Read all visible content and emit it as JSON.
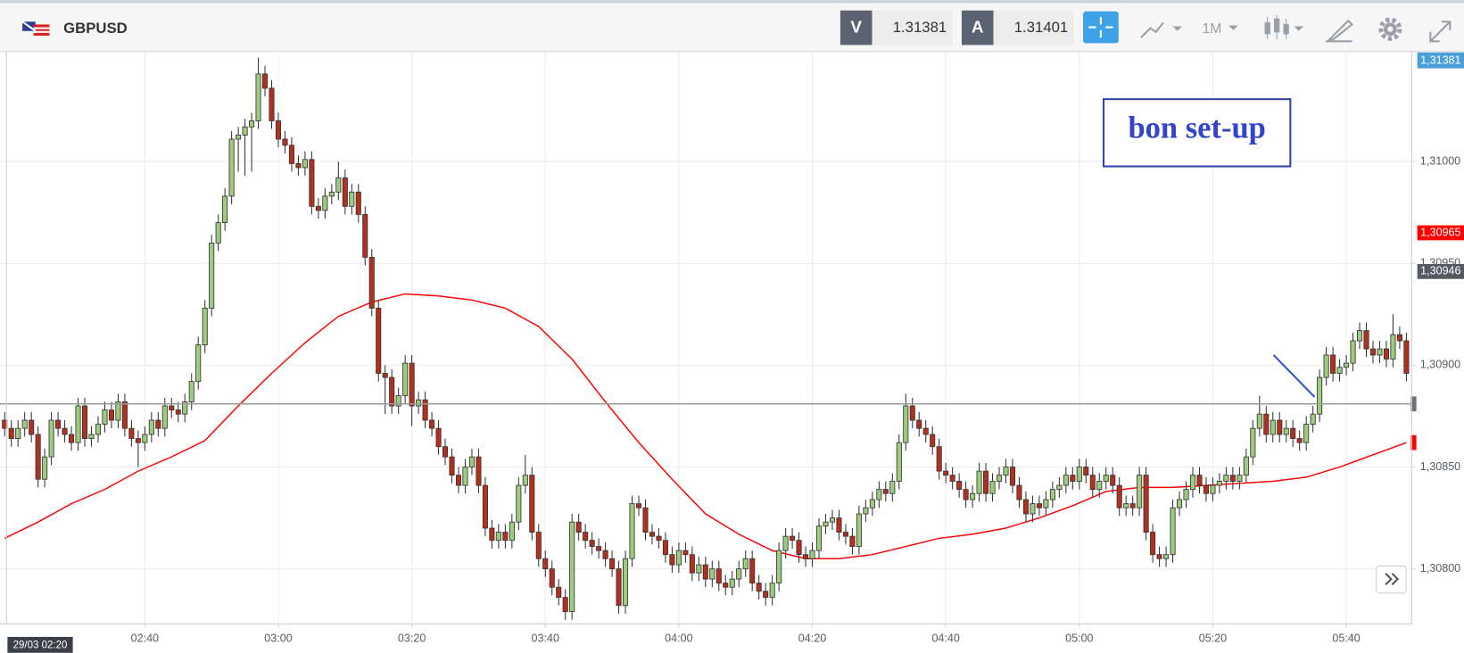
{
  "header": {
    "symbol": "GBPUSD",
    "bid_tag": "V",
    "bid": "1.31381",
    "ask_tag": "A",
    "ask": "1.31401",
    "timeframe": "1M"
  },
  "chart_data": {
    "type": "candlestick",
    "x": [
      139,
      140,
      141,
      142,
      143,
      144,
      145,
      146,
      147,
      148,
      149,
      150,
      151,
      152,
      153,
      154,
      155,
      156,
      157,
      158,
      159,
      160,
      161,
      162,
      163,
      164,
      165,
      166,
      167,
      168,
      169,
      170,
      171,
      172,
      173,
      174,
      175,
      176,
      177,
      178,
      179,
      180,
      181,
      182,
      183,
      184,
      185,
      186,
      187,
      188,
      189,
      190,
      191,
      192,
      193,
      194,
      195,
      196,
      197,
      198,
      199,
      200,
      201,
      202,
      203,
      204,
      205,
      206,
      207,
      208,
      209,
      210,
      211,
      212,
      213,
      214,
      215,
      216,
      217,
      218,
      219,
      220,
      221,
      222,
      223,
      224,
      225,
      226,
      227,
      228,
      229,
      230,
      231,
      232,
      233,
      234,
      235,
      236,
      237,
      238,
      239,
      240,
      241,
      242,
      243,
      244,
      245,
      246,
      247,
      248,
      249,
      250,
      251,
      252,
      253,
      254,
      255,
      256,
      257,
      258,
      259,
      260,
      261,
      262,
      263,
      264,
      265,
      266,
      267,
      268,
      269,
      270,
      271,
      272,
      273,
      274,
      275,
      276,
      277,
      278,
      279,
      280,
      281,
      282,
      283,
      284,
      285,
      286,
      287,
      288,
      289,
      290,
      291,
      292,
      293,
      294,
      295,
      296,
      297,
      298,
      299,
      300,
      301,
      302,
      303,
      304,
      305,
      306,
      307,
      308,
      309,
      310,
      311,
      312,
      313,
      314,
      315,
      316,
      317,
      318,
      319,
      320,
      321,
      322,
      323,
      324,
      325,
      326,
      327,
      328,
      329,
      330,
      331,
      332,
      333,
      334,
      335,
      336,
      337,
      338,
      339,
      340,
      341,
      342,
      343,
      344,
      345,
      346,
      347,
      348,
      349
    ],
    "open": [
      1.30873,
      1.30869,
      1.30864,
      1.30869,
      1.30873,
      1.30866,
      1.30844,
      1.30855,
      1.30873,
      1.30869,
      1.30866,
      1.30862,
      1.3088,
      1.30864,
      1.30866,
      1.30871,
      1.30878,
      1.30873,
      1.30882,
      1.30869,
      1.30864,
      1.30862,
      1.30866,
      1.30873,
      1.30869,
      1.3088,
      1.30878,
      1.30876,
      1.30882,
      1.30892,
      1.3091,
      1.30928,
      1.3096,
      1.3097,
      1.30983,
      1.31011,
      1.31013,
      1.31017,
      1.3102,
      1.31043,
      1.31036,
      1.3102,
      1.31011,
      1.31008,
      1.30999,
      1.30997,
      1.31001,
      1.30978,
      1.30976,
      1.30983,
      1.30985,
      1.30992,
      1.30978,
      1.30985,
      1.30974,
      1.30953,
      1.30928,
      1.30896,
      1.30894,
      1.3088,
      1.30885,
      1.30901,
      1.3088,
      1.30883,
      1.30873,
      1.30869,
      1.3086,
      1.30855,
      1.30846,
      1.30841,
      1.3085,
      1.30855,
      1.30841,
      1.3082,
      1.30814,
      1.30818,
      1.30814,
      1.30823,
      1.30841,
      1.30846,
      1.30818,
      1.30805,
      1.308,
      1.30791,
      1.30786,
      1.30779,
      1.30823,
      1.30818,
      1.30814,
      1.30811,
      1.30809,
      1.30805,
      1.308,
      1.30782,
      1.30805,
      1.30832,
      1.3083,
      1.30818,
      1.30816,
      1.30814,
      1.30807,
      1.30802,
      1.30809,
      1.30807,
      1.30798,
      1.30802,
      1.30795,
      1.308,
      1.30793,
      1.30791,
      1.30795,
      1.308,
      1.30805,
      1.30793,
      1.30789,
      1.30786,
      1.30793,
      1.30809,
      1.30816,
      1.30814,
      1.30807,
      1.30805,
      1.30809,
      1.30821,
      1.30823,
      1.30825,
      1.30818,
      1.30816,
      1.30811,
      1.30827,
      1.3083,
      1.30834,
      1.30839,
      1.30837,
      1.30843,
      1.30862,
      1.3088,
      1.30873,
      1.30869,
      1.30866,
      1.3086,
      1.30848,
      1.30846,
      1.30843,
      1.30839,
      1.30834,
      1.30837,
      1.30848,
      1.30837,
      1.30843,
      1.30846,
      1.3085,
      1.30841,
      1.30834,
      1.30827,
      1.30832,
      1.3083,
      1.30834,
      1.30839,
      1.30841,
      1.30846,
      1.30843,
      1.3085,
      1.30846,
      1.30839,
      1.30843,
      1.30846,
      1.30841,
      1.3083,
      1.30832,
      1.3083,
      1.30846,
      1.30818,
      1.30807,
      1.30805,
      1.30807,
      1.3083,
      1.30834,
      1.30839,
      1.30846,
      1.30841,
      1.30837,
      1.30841,
      1.30843,
      1.30846,
      1.30843,
      1.30846,
      1.30855,
      1.30869,
      1.30876,
      1.30866,
      1.30873,
      1.30866,
      1.30869,
      1.30864,
      1.30862,
      1.30871,
      1.30876,
      1.30894,
      1.30905,
      1.30896,
      1.30899,
      1.30901,
      1.30912,
      1.30917,
      1.30908,
      1.30905,
      1.30908,
      1.30903,
      1.30915,
      1.30912
    ],
    "high": [
      1.30877,
      1.30873,
      1.30873,
      1.30877,
      1.30877,
      1.3087,
      1.30859,
      1.30877,
      1.30877,
      1.30873,
      1.3087,
      1.30884,
      1.30884,
      1.3087,
      1.30875,
      1.30882,
      1.30882,
      1.30886,
      1.30886,
      1.30873,
      1.30868,
      1.3087,
      1.30877,
      1.30877,
      1.30884,
      1.30884,
      1.30882,
      1.30886,
      1.30896,
      1.30914,
      1.30932,
      1.30964,
      1.30974,
      1.30987,
      1.31015,
      1.31017,
      1.31021,
      1.31024,
      1.31051,
      1.31047,
      1.3104,
      1.31024,
      1.31015,
      1.31012,
      1.31003,
      1.31005,
      1.31005,
      1.30982,
      1.30987,
      1.30989,
      1.31,
      1.30996,
      1.30989,
      1.30989,
      1.30978,
      1.30957,
      1.30932,
      1.309,
      1.30898,
      1.30889,
      1.30905,
      1.30905,
      1.30887,
      1.30887,
      1.30877,
      1.30873,
      1.30864,
      1.30859,
      1.3085,
      1.30854,
      1.30859,
      1.30859,
      1.30845,
      1.30824,
      1.30822,
      1.30822,
      1.30827,
      1.30845,
      1.30856,
      1.3085,
      1.30822,
      1.30809,
      1.30804,
      1.30795,
      1.3079,
      1.30827,
      1.30827,
      1.30822,
      1.30818,
      1.30815,
      1.30813,
      1.30809,
      1.30804,
      1.30809,
      1.30836,
      1.30836,
      1.30834,
      1.30822,
      1.3082,
      1.30818,
      1.30811,
      1.30813,
      1.30813,
      1.30811,
      1.30806,
      1.30806,
      1.30804,
      1.30804,
      1.30797,
      1.30799,
      1.30804,
      1.30809,
      1.30809,
      1.30797,
      1.30793,
      1.30797,
      1.30813,
      1.3082,
      1.3082,
      1.30818,
      1.30811,
      1.30813,
      1.30825,
      1.30827,
      1.30829,
      1.30829,
      1.30822,
      1.3082,
      1.30831,
      1.30834,
      1.30838,
      1.30843,
      1.30843,
      1.30847,
      1.30866,
      1.30886,
      1.30884,
      1.30877,
      1.30873,
      1.3087,
      1.30864,
      1.30852,
      1.3085,
      1.30847,
      1.30843,
      1.30841,
      1.30852,
      1.30852,
      1.30847,
      1.3085,
      1.30854,
      1.30854,
      1.30845,
      1.30838,
      1.30836,
      1.30836,
      1.30838,
      1.30843,
      1.30845,
      1.3085,
      1.3085,
      1.30854,
      1.30854,
      1.3085,
      1.30847,
      1.3085,
      1.3085,
      1.30845,
      1.30836,
      1.30836,
      1.3085,
      1.3085,
      1.30822,
      1.30811,
      1.30811,
      1.30834,
      1.30838,
      1.30843,
      1.3085,
      1.3085,
      1.30845,
      1.30845,
      1.30847,
      1.3085,
      1.3085,
      1.3085,
      1.30859,
      1.30873,
      1.30885,
      1.3088,
      1.30877,
      1.30877,
      1.30873,
      1.30873,
      1.30868,
      1.30875,
      1.3088,
      1.30898,
      1.30909,
      1.30909,
      1.30903,
      1.30905,
      1.30916,
      1.30921,
      1.30921,
      1.30912,
      1.30912,
      1.30912,
      1.30925,
      1.30919,
      1.30916
    ],
    "low": [
      1.30865,
      1.3086,
      1.3086,
      1.30865,
      1.30862,
      1.3084,
      1.3084,
      1.30851,
      1.30865,
      1.30862,
      1.30858,
      1.30858,
      1.3086,
      1.3086,
      1.30862,
      1.30867,
      1.30869,
      1.30869,
      1.30865,
      1.3086,
      1.3085,
      1.30858,
      1.30862,
      1.30865,
      1.30865,
      1.30874,
      1.30872,
      1.30872,
      1.30878,
      1.30888,
      1.30906,
      1.30924,
      1.30956,
      1.30966,
      1.30979,
      1.30995,
      1.30993,
      1.30995,
      1.31016,
      1.31032,
      1.31016,
      1.31007,
      1.31004,
      1.30995,
      1.30993,
      1.30993,
      1.30974,
      1.30972,
      1.30972,
      1.30979,
      1.30981,
      1.30974,
      1.30974,
      1.3097,
      1.30949,
      1.30924,
      1.30892,
      1.30876,
      1.30876,
      1.30876,
      1.30881,
      1.3087,
      1.30876,
      1.30869,
      1.30865,
      1.30856,
      1.30851,
      1.30842,
      1.30837,
      1.30837,
      1.30846,
      1.30837,
      1.30816,
      1.3081,
      1.3081,
      1.3081,
      1.3081,
      1.30819,
      1.30837,
      1.30814,
      1.30801,
      1.30796,
      1.30787,
      1.30782,
      1.30775,
      1.30775,
      1.30814,
      1.3081,
      1.30807,
      1.30805,
      1.30801,
      1.30796,
      1.30778,
      1.30778,
      1.30801,
      1.30826,
      1.30814,
      1.30812,
      1.3081,
      1.30803,
      1.30798,
      1.30798,
      1.30803,
      1.30794,
      1.30794,
      1.30791,
      1.30791,
      1.30789,
      1.30787,
      1.30787,
      1.30791,
      1.30796,
      1.30789,
      1.30785,
      1.30782,
      1.30782,
      1.30789,
      1.30805,
      1.3081,
      1.30803,
      1.30801,
      1.30801,
      1.30805,
      1.30817,
      1.30819,
      1.30814,
      1.30812,
      1.30807,
      1.30807,
      1.30823,
      1.30826,
      1.3083,
      1.30833,
      1.30833,
      1.30839,
      1.30858,
      1.30869,
      1.30865,
      1.30862,
      1.30856,
      1.30844,
      1.30842,
      1.30839,
      1.30835,
      1.3083,
      1.3083,
      1.30833,
      1.30833,
      1.30833,
      1.30839,
      1.30842,
      1.30837,
      1.3083,
      1.30823,
      1.30823,
      1.30826,
      1.30826,
      1.3083,
      1.30835,
      1.30837,
      1.30839,
      1.30839,
      1.30842,
      1.30835,
      1.30835,
      1.30839,
      1.30837,
      1.30826,
      1.30826,
      1.30826,
      1.30826,
      1.30814,
      1.30803,
      1.30801,
      1.30801,
      1.30803,
      1.30826,
      1.3083,
      1.30835,
      1.30837,
      1.30833,
      1.30833,
      1.30837,
      1.30839,
      1.30839,
      1.30839,
      1.30842,
      1.30851,
      1.30865,
      1.30862,
      1.30862,
      1.30862,
      1.30862,
      1.3086,
      1.30858,
      1.30858,
      1.30867,
      1.30872,
      1.3089,
      1.30892,
      1.30892,
      1.30895,
      1.30897,
      1.30908,
      1.30904,
      1.30901,
      1.30901,
      1.30899,
      1.30899,
      1.30908,
      1.30892
    ],
    "close": [
      1.30869,
      1.30864,
      1.30869,
      1.30873,
      1.30866,
      1.30844,
      1.30855,
      1.30873,
      1.30869,
      1.30866,
      1.30862,
      1.3088,
      1.30864,
      1.30866,
      1.30871,
      1.30878,
      1.30873,
      1.30882,
      1.30869,
      1.30864,
      1.30862,
      1.30866,
      1.30873,
      1.30869,
      1.3088,
      1.30878,
      1.30876,
      1.30882,
      1.30892,
      1.3091,
      1.30928,
      1.3096,
      1.3097,
      1.30983,
      1.31011,
      1.31013,
      1.31017,
      1.3102,
      1.31043,
      1.31036,
      1.3102,
      1.31011,
      1.31008,
      1.30999,
      1.30997,
      1.31001,
      1.30978,
      1.30976,
      1.30983,
      1.30985,
      1.30992,
      1.30978,
      1.30985,
      1.30974,
      1.30953,
      1.30928,
      1.30896,
      1.30894,
      1.3088,
      1.30885,
      1.30901,
      1.3088,
      1.30883,
      1.30873,
      1.30869,
      1.3086,
      1.30855,
      1.30846,
      1.30841,
      1.3085,
      1.30855,
      1.30841,
      1.3082,
      1.30814,
      1.30818,
      1.30814,
      1.30823,
      1.30841,
      1.30846,
      1.30818,
      1.30805,
      1.308,
      1.30791,
      1.30786,
      1.30779,
      1.30823,
      1.30818,
      1.30814,
      1.30811,
      1.30809,
      1.30805,
      1.308,
      1.30782,
      1.30805,
      1.30832,
      1.3083,
      1.30818,
      1.30816,
      1.30814,
      1.30807,
      1.30802,
      1.30809,
      1.30807,
      1.30798,
      1.30802,
      1.30795,
      1.308,
      1.30793,
      1.30791,
      1.30795,
      1.308,
      1.30805,
      1.30793,
      1.30789,
      1.30786,
      1.30793,
      1.30809,
      1.30816,
      1.30814,
      1.30807,
      1.30805,
      1.30809,
      1.30821,
      1.30823,
      1.30825,
      1.30818,
      1.30816,
      1.30811,
      1.30827,
      1.3083,
      1.30834,
      1.30839,
      1.30837,
      1.30843,
      1.30862,
      1.3088,
      1.30873,
      1.30869,
      1.30866,
      1.3086,
      1.30848,
      1.30846,
      1.30843,
      1.30839,
      1.30834,
      1.30837,
      1.30848,
      1.30837,
      1.30843,
      1.30846,
      1.3085,
      1.30841,
      1.30834,
      1.30827,
      1.30832,
      1.3083,
      1.30834,
      1.30839,
      1.30841,
      1.30846,
      1.30843,
      1.3085,
      1.30846,
      1.30839,
      1.30843,
      1.30846,
      1.30841,
      1.3083,
      1.30832,
      1.3083,
      1.30846,
      1.30818,
      1.30807,
      1.30805,
      1.30807,
      1.3083,
      1.30834,
      1.30839,
      1.30846,
      1.30841,
      1.30837,
      1.30841,
      1.30843,
      1.30846,
      1.30843,
      1.30846,
      1.30855,
      1.30869,
      1.30876,
      1.30866,
      1.30873,
      1.30866,
      1.30869,
      1.30864,
      1.30862,
      1.30871,
      1.30876,
      1.30894,
      1.30905,
      1.30896,
      1.30899,
      1.30901,
      1.30912,
      1.30917,
      1.30908,
      1.30905,
      1.30908,
      1.30903,
      1.30915,
      1.30912,
      1.30896
    ],
    "up_color": "#9ccc7c",
    "down_color": "#b3301e",
    "moving_average": {
      "color": "#ff0000",
      "x": [
        139,
        144,
        149,
        154,
        159,
        164,
        169,
        174,
        179,
        184,
        189,
        194,
        199,
        204,
        209,
        214,
        219,
        224,
        229,
        234,
        239,
        244,
        249,
        254,
        259,
        264,
        269,
        274,
        279,
        284,
        289,
        294,
        299,
        304,
        309,
        314,
        319,
        324,
        329,
        334,
        339,
        344,
        349
      ],
      "values": [
        1.30815,
        1.30823,
        1.30832,
        1.30839,
        1.30848,
        1.30855,
        1.30863,
        1.3088,
        1.30896,
        1.30911,
        1.30924,
        1.30931,
        1.30935,
        1.30934,
        1.30932,
        1.30928,
        1.30919,
        1.30903,
        1.30882,
        1.30862,
        1.30844,
        1.30827,
        1.30817,
        1.30809,
        1.30805,
        1.30805,
        1.30807,
        1.30811,
        1.30815,
        1.30817,
        1.3082,
        1.30825,
        1.30831,
        1.30838,
        1.3084,
        1.3084,
        1.30841,
        1.30842,
        1.30843,
        1.30845,
        1.3085,
        1.30856,
        1.30862
      ]
    },
    "xlim": [
      138.3,
      349.8
    ],
    "xticks": [
      {
        "value": 160,
        "label": "02:40"
      },
      {
        "value": 180,
        "label": "03:00"
      },
      {
        "value": 200,
        "label": "03:20"
      },
      {
        "value": 220,
        "label": "03:40"
      },
      {
        "value": 240,
        "label": "04:00"
      },
      {
        "value": 260,
        "label": "04:20"
      },
      {
        "value": 280,
        "label": "04:40"
      },
      {
        "value": 300,
        "label": "05:00"
      },
      {
        "value": 320,
        "label": "05:20"
      },
      {
        "value": 340,
        "label": "05:40"
      }
    ],
    "ylim": [
      1.30773,
      1.31054
    ],
    "yticks": [
      {
        "value": 1.308,
        "label": "1,30800"
      },
      {
        "value": 1.3085,
        "label": "1,30850"
      },
      {
        "value": 1.309,
        "label": "1,30900"
      },
      {
        "value": 1.3095,
        "label": "1,30950"
      },
      {
        "value": 1.31,
        "label": "1,31000"
      }
    ],
    "grid": true,
    "reference_line": 1.30881,
    "price_labels": [
      {
        "value": 1.30965,
        "label": "1,30965",
        "color": "#ff0000"
      },
      {
        "value": 1.30946,
        "label": "1,30946",
        "color": "#555a62"
      }
    ],
    "top_price_label": "1,31381",
    "start_label": "29/03 02:20",
    "annotation": "bon set-up"
  }
}
